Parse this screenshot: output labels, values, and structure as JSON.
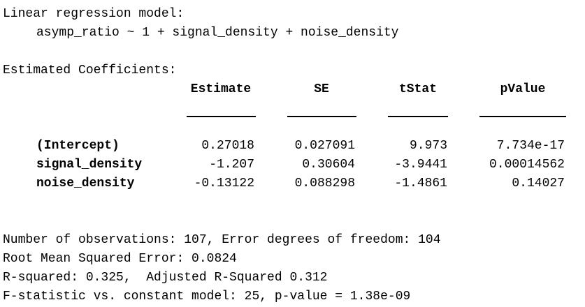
{
  "model": {
    "heading": "Linear regression model:",
    "formula": "asymp_ratio ~ 1 + signal_density + noise_density"
  },
  "coefficients": {
    "heading": "Estimated Coefficients:",
    "columns": [
      "Estimate",
      "SE",
      "tStat",
      "pValue"
    ],
    "rows": [
      {
        "name": "(Intercept)",
        "values": [
          "0.27018",
          "0.027091",
          "9.973",
          "7.734e-17"
        ]
      },
      {
        "name": "signal_density",
        "values": [
          "-1.207",
          "0.30604",
          "-3.9441",
          "0.00014562"
        ]
      },
      {
        "name": "noise_density",
        "values": [
          "-0.13122",
          "0.088298",
          "-1.4861",
          "0.14027"
        ]
      }
    ]
  },
  "summary": [
    "Number of observations: 107, Error degrees of freedom: 104",
    "Root Mean Squared Error: 0.0824",
    "R-squared: 0.325,  Adjusted R-Squared 0.312",
    "F-statistic vs. constant model: 25, p-value = 1.38e-09"
  ]
}
